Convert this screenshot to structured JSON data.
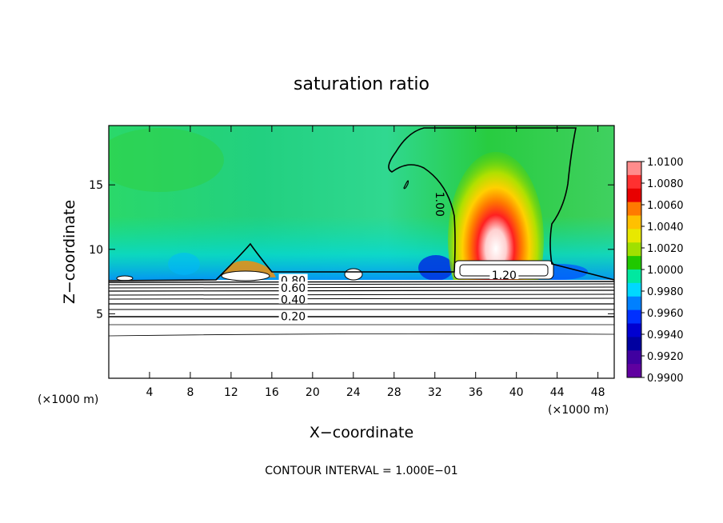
{
  "chart_data": {
    "type": "heatmap",
    "title": "saturation ratio",
    "xlabel": "X−coordinate",
    "ylabel": "Z−coordinate",
    "x_unit_left": "(×1000 m)",
    "x_unit_right": "(×1000 m)",
    "x_ticks": [
      4,
      8,
      12,
      16,
      20,
      24,
      28,
      32,
      36,
      40,
      44,
      48
    ],
    "y_ticks": [
      5,
      10,
      15
    ],
    "xlim": [
      0,
      49.6
    ],
    "ylim": [
      0,
      19.6
    ],
    "colorbar": {
      "labels": [
        "1.0100",
        "1.0080",
        "1.0060",
        "1.0040",
        "1.0020",
        "1.0000",
        "0.9980",
        "0.9960",
        "0.9940",
        "0.9920",
        "0.9900"
      ],
      "colors": [
        "#ff8c8c",
        "#ff3030",
        "#e80000",
        "#ff7a00",
        "#ffc000",
        "#e8e800",
        "#a0e000",
        "#20c800",
        "#00e8a0",
        "#00d8ff",
        "#0080ff",
        "#0030ff",
        "#0000d0",
        "#0000a0",
        "#4000a0",
        "#6000a0"
      ]
    },
    "contour_labels": [
      {
        "text": "1.00",
        "x": 32.5,
        "y": 13.5
      },
      {
        "text": "1.20",
        "x": 38.8,
        "y": 8.0
      },
      {
        "text": "0.80",
        "x": 18.1,
        "y": 7.6
      },
      {
        "text": "0.60",
        "x": 18.1,
        "y": 7.0
      },
      {
        "text": "0.40",
        "x": 18.1,
        "y": 6.1
      },
      {
        "text": "0.20",
        "x": 18.1,
        "y": 4.8
      }
    ],
    "footnote": "CONTOUR INTERVAL = 1.000E−01"
  }
}
